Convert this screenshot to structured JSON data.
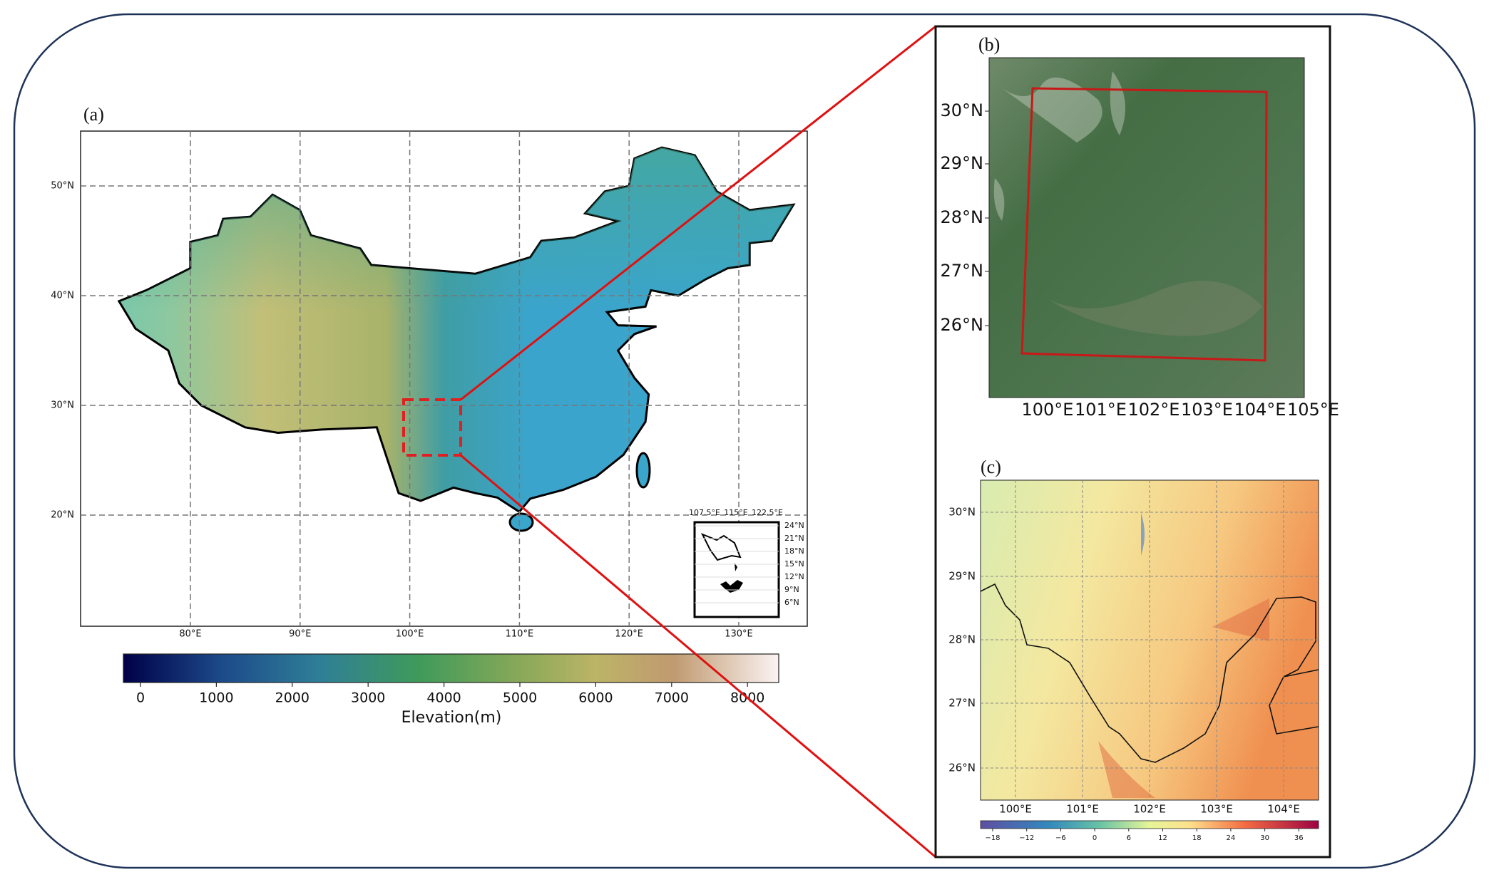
{
  "panel_a": {
    "label": "(a)",
    "xticks": [
      "80°E",
      "90°E",
      "100°E",
      "110°E",
      "120°E",
      "130°E"
    ],
    "yticks": [
      "50°N",
      "40°N",
      "30°N",
      "20°N"
    ],
    "inset": {
      "xticks": [
        "107.5°E",
        "115°E",
        "122.5°E"
      ],
      "yticks": [
        "24°N",
        "21°N",
        "18°N",
        "15°N",
        "12°N",
        "9°N",
        "6°N"
      ]
    },
    "colorbar": {
      "ticks": [
        0,
        1000,
        2000,
        3000,
        4000,
        5000,
        6000,
        7000,
        8000
      ],
      "label": "Elevation(m)"
    }
  },
  "panel_b": {
    "label": "(b)",
    "yticks": [
      "30°N",
      "29°N",
      "28°N",
      "27°N",
      "26°N"
    ],
    "xticks": [
      "100°E",
      "101°E",
      "102°E",
      "103°E",
      "104°E",
      "105°E"
    ]
  },
  "panel_c": {
    "label": "(c)",
    "yticks": [
      "30°N",
      "29°N",
      "28°N",
      "27°N",
      "26°N"
    ],
    "xticks": [
      "100°E",
      "101°E",
      "102°E",
      "103°E",
      "104°E"
    ],
    "colorbar": {
      "ticks": [
        "−18",
        "−12",
        "−6",
        "0",
        "6",
        "12",
        "18",
        "24",
        "30",
        "36"
      ]
    }
  }
}
